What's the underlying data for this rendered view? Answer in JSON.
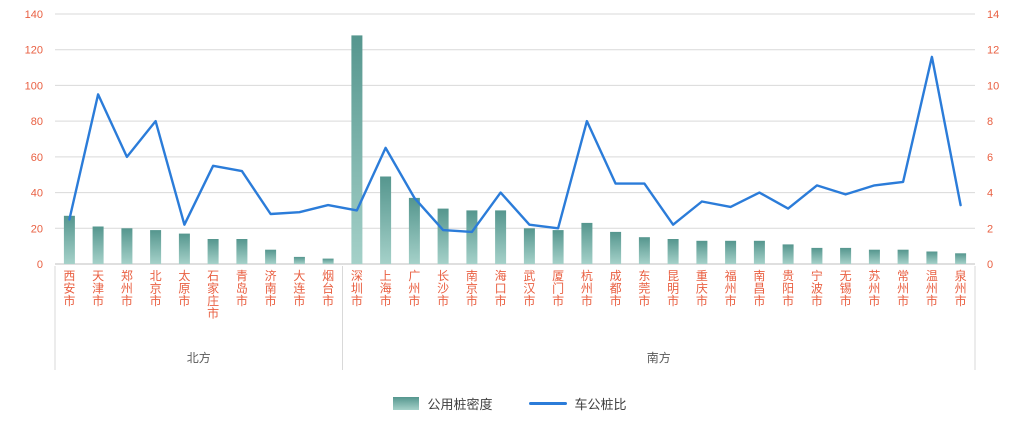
{
  "chart_data": {
    "type": "bar",
    "subtype": "combo-bar-line-dual-axis",
    "categories": [
      "西安市",
      "天津市",
      "郑州市",
      "北京市",
      "太原市",
      "石家庄市",
      "青岛市",
      "济南市",
      "大连市",
      "烟台市",
      "深圳市",
      "上海市",
      "广州市",
      "长沙市",
      "南京市",
      "海口市",
      "武汉市",
      "厦门市",
      "杭州市",
      "成都市",
      "东莞市",
      "昆明市",
      "重庆市",
      "福州市",
      "南昌市",
      "贵阳市",
      "宁波市",
      "无锡市",
      "苏州市",
      "常州市",
      "温州市",
      "泉州市"
    ],
    "groups": [
      {
        "label": "北方",
        "start": 0,
        "end": 9
      },
      {
        "label": "南方",
        "start": 10,
        "end": 31
      }
    ],
    "series": [
      {
        "name": "公用桩密度",
        "type": "bar",
        "axis": "left",
        "values": [
          27,
          21,
          20,
          19,
          17,
          14,
          14,
          8,
          4,
          3,
          128,
          49,
          37,
          31,
          30,
          30,
          20,
          19,
          23,
          18,
          15,
          14,
          13,
          13,
          13,
          11,
          9,
          9,
          8,
          8,
          7,
          6
        ]
      },
      {
        "name": "车公桩比",
        "type": "line",
        "axis": "right",
        "values": [
          2.5,
          9.5,
          6.0,
          8.0,
          2.2,
          5.5,
          5.2,
          2.8,
          2.9,
          3.3,
          3.0,
          6.5,
          3.7,
          1.9,
          1.8,
          4.0,
          2.2,
          2.0,
          8.0,
          4.5,
          4.5,
          2.2,
          3.5,
          3.2,
          4.0,
          3.1,
          4.4,
          3.9,
          4.4,
          4.6,
          11.6,
          3.3
        ]
      }
    ],
    "left_axis": {
      "min": 0,
      "max": 140,
      "step": 20
    },
    "right_axis": {
      "min": 0,
      "max": 14,
      "step": 2
    },
    "grid": true,
    "legend_position": "bottom",
    "colors": {
      "bar_top": "#55968e",
      "bar_bottom": "#a5d1c9",
      "line": "#2b7cd9",
      "axis_text": "#e95f41",
      "gridline": "#d9d9d9",
      "baseline": "#bfbfbf",
      "group_text": "#595959",
      "legend_text": "#404040"
    }
  }
}
